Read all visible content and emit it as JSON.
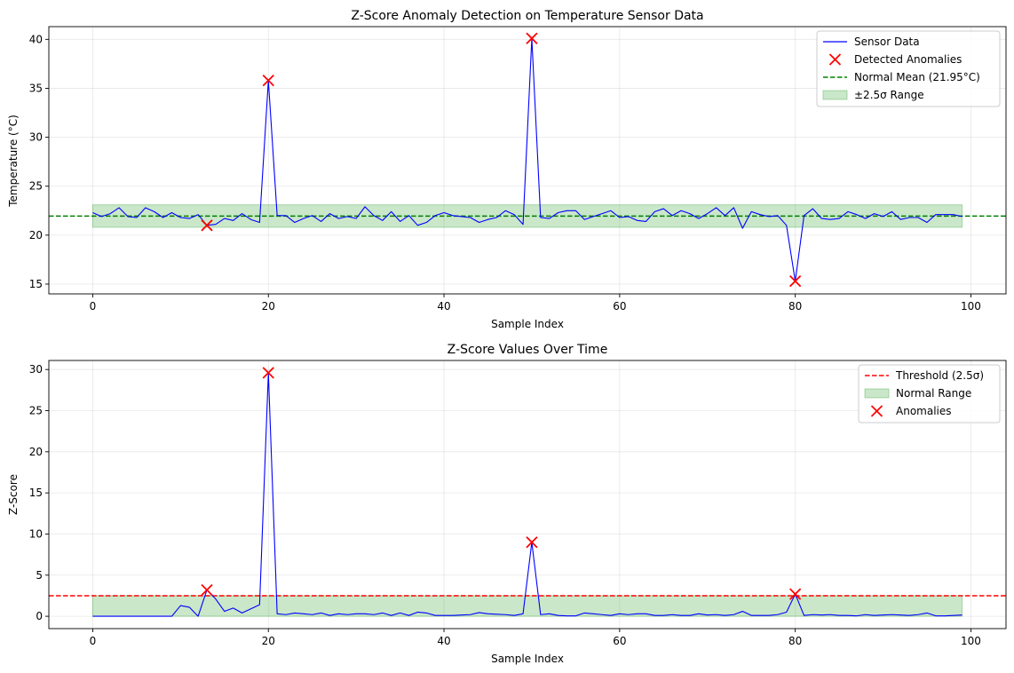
{
  "chart_data": [
    {
      "type": "line",
      "title": "Z-Score Anomaly Detection on Temperature Sensor Data",
      "xlabel": "Sample Index",
      "ylabel": "Temperature (°C)",
      "xlim": [
        -5,
        104
      ],
      "ylim": [
        14,
        41.3
      ],
      "xticks": [
        0,
        20,
        40,
        60,
        80,
        100
      ],
      "yticks": [
        15,
        20,
        25,
        30,
        35,
        40
      ],
      "grid": true,
      "legend_position": "upper right",
      "legend": [
        "Sensor Data",
        "Detected Anomalies",
        "Normal Mean (21.95°C)",
        "±2.5σ Range"
      ],
      "band": {
        "name": "±2.5σ Range",
        "lower": 20.8,
        "upper": 23.1,
        "x": [
          0,
          99
        ],
        "color": "#2ca02c"
      },
      "mean_line": {
        "name": "Normal Mean (21.95°C)",
        "value": 21.95,
        "color": "#008000"
      },
      "series": [
        {
          "name": "Sensor Data",
          "color": "#0000ff",
          "x_start": 0,
          "values": [
            22.3,
            21.9,
            22.2,
            22.8,
            21.9,
            21.8,
            22.8,
            22.4,
            21.8,
            22.3,
            21.8,
            21.7,
            22.1,
            21.0,
            21.1,
            21.7,
            21.5,
            22.2,
            21.6,
            21.3,
            35.8,
            22.0,
            22.0,
            21.3,
            21.7,
            22.0,
            21.4,
            22.2,
            21.7,
            21.9,
            21.7,
            22.9,
            22.0,
            21.5,
            22.4,
            21.4,
            22.0,
            21.0,
            21.3,
            22.0,
            22.3,
            22.0,
            21.9,
            21.8,
            21.3,
            21.6,
            21.8,
            22.5,
            22.1,
            21.1,
            40.1,
            21.8,
            21.7,
            22.3,
            22.5,
            22.5,
            21.6,
            21.9,
            22.2,
            22.5,
            21.8,
            21.9,
            21.5,
            21.4,
            22.4,
            22.7,
            22.0,
            22.5,
            22.2,
            21.7,
            22.2,
            22.8,
            22.0,
            22.8,
            20.7,
            22.4,
            22.1,
            21.9,
            22.0,
            21.0,
            15.3,
            22.0,
            22.7,
            21.7,
            21.6,
            21.7,
            22.4,
            22.1,
            21.7,
            22.2,
            21.9,
            22.4,
            21.6,
            21.8,
            21.8,
            21.3,
            22.1,
            22.1,
            22.1,
            21.9
          ]
        },
        {
          "name": "Detected Anomalies",
          "color": "#ff0000",
          "marker": "x",
          "points": [
            {
              "x": 13,
              "y": 21.0
            },
            {
              "x": 20,
              "y": 35.8
            },
            {
              "x": 50,
              "y": 40.1
            },
            {
              "x": 80,
              "y": 15.3
            }
          ]
        }
      ]
    },
    {
      "type": "line",
      "title": "Z-Score Values Over Time",
      "xlabel": "Sample Index",
      "ylabel": "Z-Score",
      "xlim": [
        -5,
        104
      ],
      "ylim": [
        -1.5,
        31.1
      ],
      "xticks": [
        0,
        20,
        40,
        60,
        80,
        100
      ],
      "yticks": [
        0,
        5,
        10,
        15,
        20,
        25,
        30
      ],
      "grid": true,
      "legend_position": "upper right",
      "legend": [
        "Threshold (2.5σ)",
        "Normal Range",
        "Anomalies"
      ],
      "band": {
        "name": "Normal Range",
        "lower": 0,
        "upper": 2.5,
        "x": [
          0,
          99
        ],
        "color": "#2ca02c"
      },
      "threshold_line": {
        "name": "Threshold (2.5σ)",
        "value": 2.5,
        "color": "#ff0000"
      },
      "series": [
        {
          "name": "Z-Score",
          "color": "#0000ff",
          "x_start": 0,
          "values": [
            0,
            0,
            0,
            0,
            0,
            0,
            0,
            0,
            0,
            0,
            1.3,
            1.1,
            0,
            3.2,
            2.1,
            0.6,
            1.0,
            0.4,
            0.9,
            1.4,
            29.6,
            0.3,
            0.2,
            0.4,
            0.3,
            0.2,
            0.4,
            0.1,
            0.3,
            0.2,
            0.3,
            0.3,
            0.2,
            0.4,
            0.1,
            0.4,
            0.1,
            0.5,
            0.4,
            0.1,
            0.1,
            0.1,
            0.15,
            0.2,
            0.45,
            0.3,
            0.25,
            0.2,
            0.1,
            0.3,
            9.0,
            0.2,
            0.3,
            0.1,
            0.05,
            0.05,
            0.4,
            0.3,
            0.2,
            0.1,
            0.3,
            0.2,
            0.3,
            0.3,
            0.1,
            0.1,
            0.2,
            0.1,
            0.1,
            0.3,
            0.15,
            0.2,
            0.1,
            0.2,
            0.6,
            0.1,
            0.1,
            0.1,
            0.2,
            0.5,
            2.7,
            0.1,
            0.2,
            0.15,
            0.2,
            0.1,
            0.1,
            0.05,
            0.2,
            0.1,
            0.15,
            0.2,
            0.15,
            0.1,
            0.2,
            0.4,
            0.05,
            0.05,
            0.1,
            0.15
          ]
        },
        {
          "name": "Anomalies",
          "color": "#ff0000",
          "marker": "x",
          "points": [
            {
              "x": 13,
              "y": 3.2
            },
            {
              "x": 20,
              "y": 29.6
            },
            {
              "x": 50,
              "y": 9.0
            },
            {
              "x": 80,
              "y": 2.7
            }
          ]
        }
      ]
    }
  ]
}
